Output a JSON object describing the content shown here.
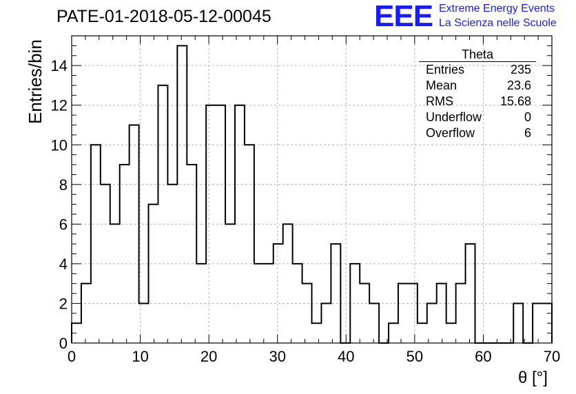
{
  "title": "PATE-01-2018-05-12-00045",
  "logo": {
    "mark": "EEE",
    "line1": "Extreme Energy Events",
    "line2": "La Scienza nelle Scuole",
    "color": "#1a1aff"
  },
  "stats": {
    "title": "Theta",
    "rows": [
      {
        "label": "Entries",
        "value": "235"
      },
      {
        "label": "Mean",
        "value": "23.6"
      },
      {
        "label": "RMS",
        "value": "15.68"
      },
      {
        "label": "Underflow",
        "value": "0"
      },
      {
        "label": "Overflow",
        "value": "6"
      }
    ]
  },
  "chart_data": {
    "type": "histogram",
    "xlabel": "θ [°]",
    "ylabel": "Entries/bin",
    "xlim": [
      0,
      70
    ],
    "ylim": [
      0,
      15.5
    ],
    "bin_width": 1.4,
    "xticks": [
      0,
      10,
      20,
      30,
      40,
      50,
      60,
      70
    ],
    "yticks": [
      0,
      2,
      4,
      6,
      8,
      10,
      12,
      14
    ],
    "grid": true,
    "values": [
      1,
      3,
      10,
      8,
      6,
      9,
      11,
      2,
      7,
      13,
      8,
      15,
      9,
      4,
      12,
      12,
      6,
      12,
      10,
      4,
      4,
      5,
      6,
      4,
      3,
      1,
      2,
      5,
      0,
      4,
      3,
      2,
      0,
      1,
      3,
      3,
      1,
      2,
      3,
      1,
      3,
      5,
      0,
      0,
      0,
      0,
      2,
      0,
      2,
      2
    ]
  }
}
